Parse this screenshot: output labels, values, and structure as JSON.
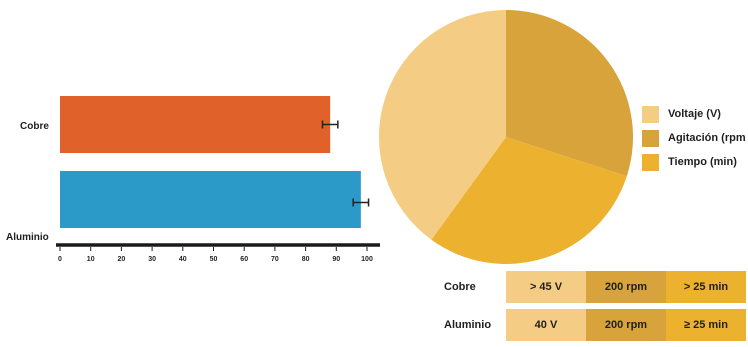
{
  "chart_data": [
    {
      "type": "bar",
      "orientation": "horizontal",
      "categories": [
        "Cobre",
        "Aluminio"
      ],
      "values": [
        88,
        98
      ],
      "error": [
        2.5,
        2.5
      ],
      "colors": [
        "#e0622a",
        "#2c9ac9"
      ],
      "xlim": [
        0,
        100
      ],
      "xticks": [
        "0",
        "10",
        "20",
        "30",
        "40",
        "50",
        "60",
        "70",
        "80",
        "90",
        "100"
      ],
      "title": "",
      "xlabel": "",
      "ylabel": ""
    },
    {
      "type": "pie",
      "labels": [
        "Voltaje (V)",
        "Agitación (rpm",
        "Tiempo (min)"
      ],
      "values": [
        40,
        30,
        30
      ],
      "colors": [
        "#f5cc84",
        "#d7a33a",
        "#ecb12f"
      ],
      "legend_position": "right"
    },
    {
      "type": "table",
      "rows": [
        {
          "label": "Cobre",
          "cells": [
            "> 45 V",
            "200 rpm",
            "> 25 min"
          ]
        },
        {
          "label": "Aluminio",
          "cells": [
            "40 V",
            "200 rpm",
            "≥ 25 min"
          ]
        }
      ],
      "column_colors": [
        "#f5cc84",
        "#d7a33a",
        "#ecb12f"
      ]
    }
  ]
}
